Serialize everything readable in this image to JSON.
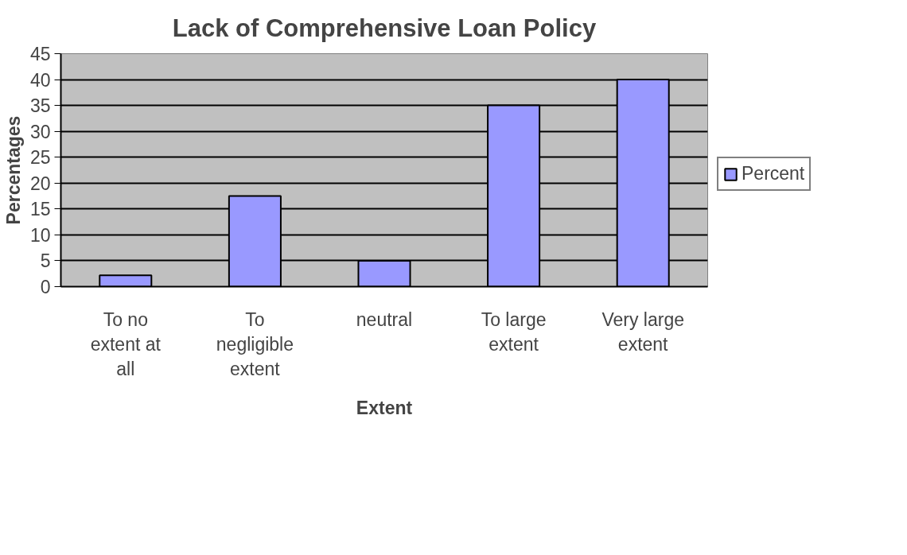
{
  "chart_data": {
    "type": "bar",
    "title": "Lack of Comprehensive Loan Policy",
    "xlabel": "Extent",
    "ylabel": "Percentages",
    "categories": [
      "To no extent at all",
      "To negligible extent",
      "neutral",
      "To large extent",
      "Very large extent"
    ],
    "series": [
      {
        "name": "Percent",
        "color": "#9999ff",
        "values": [
          2.2,
          17.5,
          5,
          35,
          40
        ]
      }
    ],
    "ylim": [
      0,
      45
    ],
    "yticks": [
      0,
      5,
      10,
      15,
      20,
      25,
      30,
      35,
      40,
      45
    ],
    "grid": "y",
    "legend": "right"
  }
}
